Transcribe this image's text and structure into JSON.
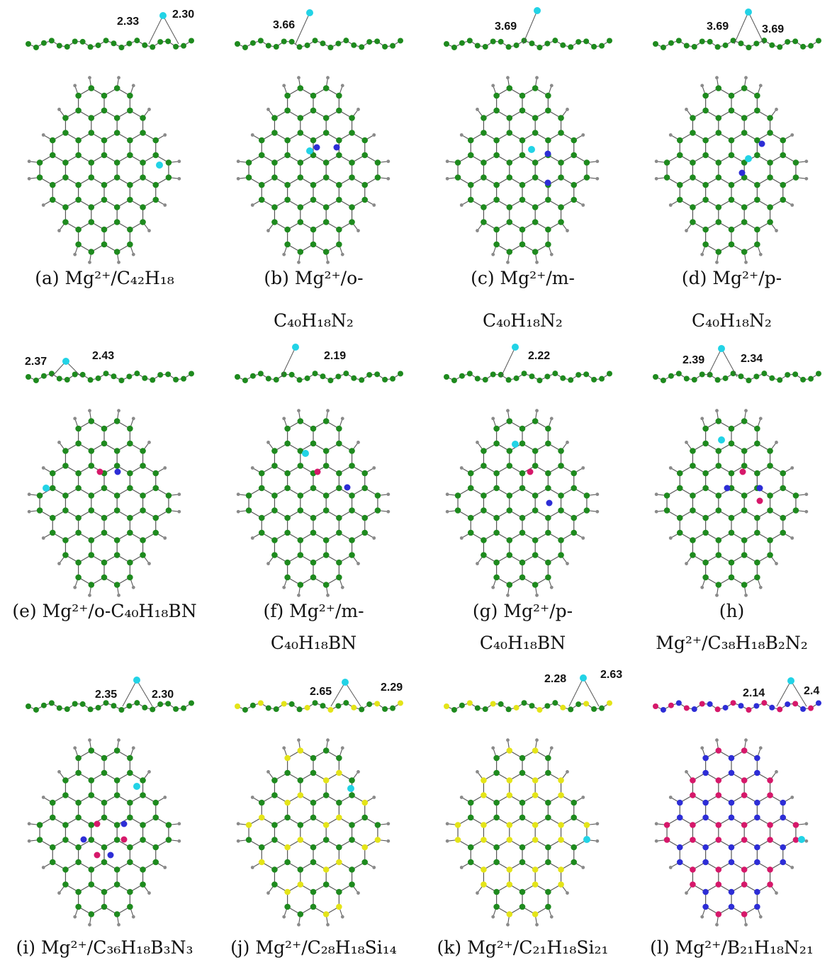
{
  "colors": {
    "carbon": "#1e8a1e",
    "hydrogen": "#8a8a8a",
    "magnesium": "#22d3e6",
    "nitrogen": "#2d2dd6",
    "boron": "#d6186a",
    "silicon": "#e4e418",
    "bond": "#555555"
  },
  "panels": [
    {
      "id": "a",
      "caption_line1": "(a) Mg²⁺/C₄₂H₁₈",
      "caption_line2": "",
      "distances": [
        "2.33",
        "2.30"
      ]
    },
    {
      "id": "b",
      "caption_line1": "(b) Mg²⁺/o-",
      "caption_line2": "C₄₀H₁₈N₂",
      "distances": [
        "3.66"
      ]
    },
    {
      "id": "c",
      "caption_line1": "(c) Mg²⁺/m-",
      "caption_line2": "C₄₀H₁₈N₂",
      "distances": [
        "3.69"
      ]
    },
    {
      "id": "d",
      "caption_line1": "(d) Mg²⁺/p-",
      "caption_line2": "C₄₀H₁₈N₂",
      "distances": [
        "3.69",
        "3.69"
      ]
    },
    {
      "id": "e",
      "caption_line1": "(e) Mg²⁺/o-C₄₀H₁₈BN",
      "caption_line2": "",
      "distances": [
        "2.37",
        "2.43"
      ]
    },
    {
      "id": "f",
      "caption_line1": "(f) Mg²⁺/m-",
      "caption_line2": "C₄₀H₁₈BN",
      "distances": [
        "2.19"
      ]
    },
    {
      "id": "g",
      "caption_line1": "(g) Mg²⁺/p-",
      "caption_line2": "C₄₀H₁₈BN",
      "distances": [
        "2.22"
      ]
    },
    {
      "id": "h",
      "caption_line1": "(h)",
      "caption_line2": "Mg²⁺/C₃₈H₁₈B₂N₂",
      "distances": [
        "2.39",
        "2.34"
      ]
    },
    {
      "id": "i",
      "caption_line1": "(i) Mg²⁺/C₃₆H₁₈B₃N₃",
      "caption_line2": "",
      "distances": [
        "2.35",
        "2.30"
      ]
    },
    {
      "id": "j",
      "caption_line1": "(j) Mg²⁺/C₂₈H₁₈Si₁₄",
      "caption_line2": "",
      "distances": [
        "2.65",
        "2.29"
      ]
    },
    {
      "id": "k",
      "caption_line1": "(k) Mg²⁺/C₂₁H₁₈Si₂₁",
      "caption_line2": "",
      "distances": [
        "2.28",
        "2.63"
      ]
    },
    {
      "id": "l",
      "caption_line1": "(l) Mg²⁺/B₂₁H₁₈N₂₁",
      "caption_line2": "",
      "distances": [
        "2.14",
        "2.4"
      ]
    }
  ]
}
